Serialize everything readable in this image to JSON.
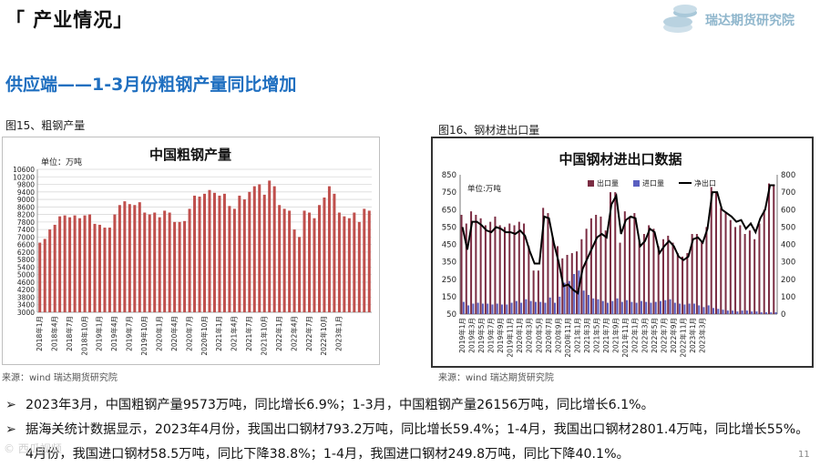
{
  "header": {
    "section_title": "「 产业情况」",
    "brand_name": "瑞达期货研究院",
    "brand_logo_icon": "coin-stack-icon",
    "brand_color": "#8fb6cc"
  },
  "subtitle": "供应端——1-3月份粗钢产量同比增加",
  "figures": {
    "fig15_label": "图15、粗钢产量",
    "fig16_label": "图16、钢材进出口量",
    "fig15_source": "来源：wind  瑞达期货研究院",
    "fig16_source": "来源：wind  瑞达期货研究院"
  },
  "bullets": [
    {
      "mark": "➢",
      "text": "2023年3月，中国粗钢产量9573万吨，同比增长6.9%；1-3月，中国粗钢产量26156万吨，同比增长6.1%。"
    },
    {
      "mark": "➢",
      "text": "据海关统计数据显示，2023年4月份，我国出口钢材793.2万吨，同比增长59.4%；1-4月，我国出口钢材2801.4万吨，同比增长55%。"
    },
    {
      "mark": "",
      "text": "4月份，我国进口钢材58.5万吨，同比下降38.8%；1-4月，我国进口钢材249.8万吨，同比下降40.1%。"
    }
  ],
  "page_number": "11",
  "watermark": "©  西瓜视频",
  "chart_data": [
    {
      "type": "bar",
      "title": "中国粗钢产量",
      "unit_label": "单位：万吨",
      "color": "#c0504d",
      "ylim": [
        3000,
        10600
      ],
      "y_ticks": [
        3000,
        3400,
        3800,
        4200,
        4600,
        5000,
        5400,
        5800,
        6200,
        6600,
        7000,
        7400,
        7800,
        8200,
        8600,
        9000,
        9400,
        9800,
        10200,
        10600
      ],
      "x_tick_labels": [
        "2018年1月",
        "2018年4月",
        "2018年7月",
        "2018年10月",
        "2019年1月",
        "2019年4月",
        "2019年7月",
        "2019年10月",
        "2020年1月",
        "2020年4月",
        "2020年7月",
        "2020年10月",
        "2021年1月",
        "2021年4月",
        "2021年7月",
        "2021年10月",
        "2022年1月",
        "2022年4月",
        "2022年7月",
        "2022年10月",
        "2023年1月"
      ],
      "x_tick_every": 3,
      "grid": true,
      "values": [
        6700,
        6900,
        7400,
        7650,
        8100,
        8150,
        8050,
        8150,
        8000,
        8150,
        8200,
        7700,
        7650,
        7500,
        7500,
        8200,
        8700,
        8900,
        8750,
        8700,
        8850,
        8300,
        8200,
        8300,
        8050,
        8400,
        8300,
        7800,
        7800,
        7850,
        8500,
        9200,
        9150,
        9300,
        9500,
        9350,
        9200,
        9300,
        8650,
        8500,
        9200,
        9000,
        9400,
        9700,
        9800,
        9250,
        10000,
        9700,
        8700,
        8500,
        8400,
        7400,
        7000,
        8400,
        8300,
        8000,
        8700,
        9100,
        9700,
        9300,
        8300,
        8100,
        8000,
        8300,
        7800,
        8500,
        8400
      ]
    },
    {
      "type": "bar",
      "title": "中国钢材进出口数据",
      "unit_label": "单位:万吨",
      "y_left": {
        "ylim": [
          50,
          850
        ],
        "ticks": [
          50,
          150,
          250,
          350,
          450,
          550,
          650,
          750,
          850
        ]
      },
      "y_right": {
        "ylim": [
          0,
          800
        ],
        "ticks": [
          0,
          100,
          200,
          300,
          400,
          500,
          600,
          700,
          800
        ]
      },
      "x_tick_labels": [
        "2019年1月",
        "2019年3月",
        "2019年5月",
        "2019年7月",
        "2019年9月",
        "2019年11月",
        "2020年1月",
        "2020年3月",
        "2020年5月",
        "2020年7月",
        "2020年9月",
        "2020年11月",
        "2021年1月",
        "2021年3月",
        "2021年5月",
        "2021年7月",
        "2021年9月",
        "2021年11月",
        "2022年1月",
        "2022年3月",
        "2022年5月",
        "2022年7月",
        "2022年9月",
        "2022年11月",
        "2023年1月",
        "2023年3月"
      ],
      "x_tick_every": 2,
      "grid": false,
      "legend": "top-center",
      "series": [
        {
          "name": "出口量",
          "kind": "bar",
          "axis": "left",
          "color": "#7b2d43",
          "values": [
            620,
            570,
            640,
            620,
            600,
            560,
            580,
            610,
            560,
            550,
            570,
            560,
            580,
            570,
            440,
            300,
            300,
            660,
            630,
            490,
            440,
            370,
            390,
            400,
            410,
            480,
            540,
            600,
            620,
            610,
            530,
            750,
            750,
            460,
            640,
            610,
            630,
            470,
            510,
            560,
            540,
            440,
            480,
            500,
            460,
            400,
            380,
            400,
            510,
            510,
            470,
            550,
            780,
            750,
            660,
            630,
            590,
            550,
            560,
            510,
            530,
            480,
            570,
            650,
            800,
            790
          ]
        },
        {
          "name": "进口量",
          "kind": "bar",
          "axis": "left",
          "color": "#5a5fc0",
          "values": [
            120,
            100,
            110,
            115,
            110,
            110,
            105,
            110,
            105,
            105,
            115,
            125,
            115,
            135,
            125,
            120,
            120,
            115,
            145,
            115,
            150,
            230,
            240,
            280,
            300,
            185,
            160,
            140,
            135,
            125,
            115,
            125,
            140,
            120,
            130,
            120,
            115,
            125,
            120,
            115,
            120,
            125,
            130,
            135,
            115,
            110,
            105,
            110,
            110,
            100,
            90,
            100,
            85,
            80,
            75,
            70,
            70,
            65,
            70,
            70,
            65,
            65,
            60,
            60,
            60,
            60
          ]
        },
        {
          "name": "净出口",
          "kind": "line",
          "axis": "right",
          "color": "#000000",
          "values": [
            500,
            370,
            530,
            530,
            510,
            480,
            470,
            500,
            490,
            470,
            470,
            460,
            480,
            450,
            360,
            290,
            290,
            560,
            550,
            410,
            300,
            160,
            170,
            140,
            120,
            260,
            320,
            380,
            440,
            460,
            440,
            630,
            680,
            460,
            540,
            560,
            550,
            390,
            420,
            490,
            470,
            350,
            390,
            420,
            390,
            330,
            310,
            330,
            430,
            440,
            410,
            490,
            700,
            700,
            600,
            580,
            560,
            530,
            540,
            490,
            520,
            470,
            550,
            600,
            740,
            740
          ]
        }
      ]
    }
  ]
}
